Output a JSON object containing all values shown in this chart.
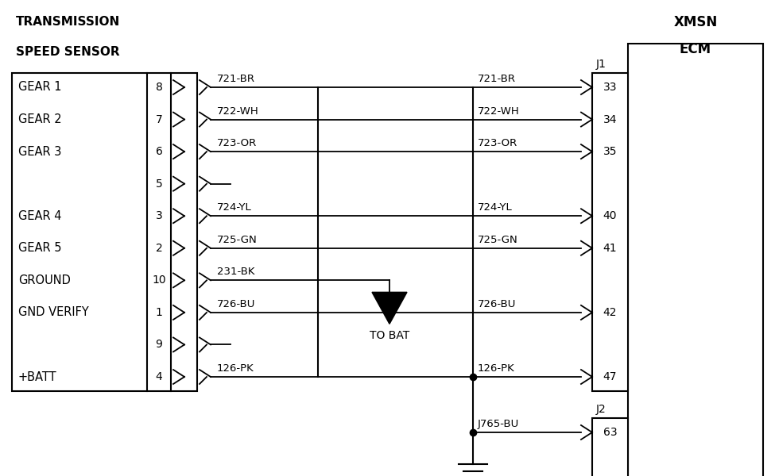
{
  "bg_color": "#ffffff",
  "left_box_title": [
    "TRANSMISSION",
    "SPEED SENSOR"
  ],
  "right_box_title": [
    "XMSN",
    "ECM"
  ],
  "left_pins": [
    {
      "label": "GEAR 1",
      "pin": "8",
      "wire": "721-BR",
      "has_wire": true
    },
    {
      "label": "GEAR 2",
      "pin": "7",
      "wire": "722-WH",
      "has_wire": true
    },
    {
      "label": "GEAR 3",
      "pin": "6",
      "wire": "723-OR",
      "has_wire": true
    },
    {
      "label": "",
      "pin": "5",
      "wire": "",
      "has_wire": false
    },
    {
      "label": "GEAR 4",
      "pin": "3",
      "wire": "724-YL",
      "has_wire": true
    },
    {
      "label": "GEAR 5",
      "pin": "2",
      "wire": "725-GN",
      "has_wire": true
    },
    {
      "label": "GROUND",
      "pin": "10",
      "wire": "231-BK",
      "has_wire": true
    },
    {
      "label": "GND VERIFY",
      "pin": "1",
      "wire": "726-BU",
      "has_wire": true
    },
    {
      "label": "",
      "pin": "9",
      "wire": "",
      "has_wire": false
    },
    {
      "label": "+BATT",
      "pin": "4",
      "wire": "126-PK",
      "has_wire": true
    }
  ],
  "right_j1_pins": [
    {
      "label": "721-BR",
      "pin": "33"
    },
    {
      "label": "722-WH",
      "pin": "34"
    },
    {
      "label": "723-OR",
      "pin": "35"
    },
    {
      "label": "724-YL",
      "pin": "40"
    },
    {
      "label": "725-GN",
      "pin": "41"
    },
    {
      "label": "726-BU",
      "pin": "42"
    },
    {
      "label": "126-PK",
      "pin": "47"
    }
  ],
  "right_j2_pins": [
    {
      "label": "J765-BU",
      "pin": "63"
    }
  ],
  "line_color": "#000000"
}
